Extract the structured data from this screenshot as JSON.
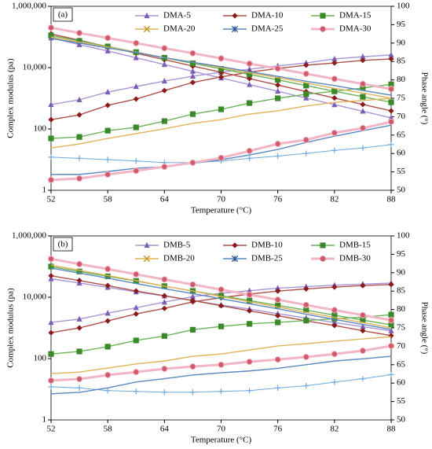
{
  "chart_data": [
    {
      "type": "line",
      "panel_label": "(a)",
      "xlabel": "Temperature (°C)",
      "ylabel": "Complex modulus (pa)",
      "y2label": "Phase angle (°)",
      "x": [
        52,
        55,
        58,
        61,
        64,
        67,
        70,
        73,
        76,
        79,
        82,
        85,
        88
      ],
      "xlim": [
        52,
        88
      ],
      "xticks": [
        52,
        58,
        64,
        70,
        76,
        82,
        88
      ],
      "yscale": "log",
      "ylim": [
        1,
        1000000
      ],
      "yticks": [
        1,
        100,
        {
          "value": 10000,
          "label": "10,000"
        },
        {
          "value": 1000000,
          "label": "1,000,000"
        }
      ],
      "y2lim": [
        50,
        100
      ],
      "y2ticks": [
        50,
        55,
        60,
        65,
        70,
        75,
        80,
        85,
        90,
        95,
        100
      ],
      "series": [
        {
          "name": "DMA-5",
          "color": "#7b5fb5",
          "line_color": "#a995d6",
          "marker": "triangle",
          "values": [
            93000,
            56000,
            35000,
            21000,
            12600,
            7600,
            4600,
            2800,
            1700,
            1020,
            620,
            380,
            230
          ],
          "phase_values": [
            73.3,
            74.6,
            76.7,
            78.2,
            79.7,
            81.0,
            82.1,
            82.9,
            83.8,
            84.6,
            85.7,
            86.3,
            86.8
          ]
        },
        {
          "name": "DMA-10",
          "color": "#8b1a1a",
          "line_color": "#b0504a",
          "marker": "diamond",
          "values": [
            126000,
            78000,
            48000,
            29500,
            18200,
            11200,
            7100,
            4400,
            2700,
            1660,
            1020,
            630,
            390
          ],
          "phase_values": [
            69.2,
            70.5,
            73.1,
            74.8,
            77.1,
            79.3,
            80.8,
            82.1,
            83.1,
            84.0,
            84.6,
            85.3,
            85.7
          ]
        },
        {
          "name": "DMA-15",
          "color": "#3a8a2a",
          "line_color": "#6db35a",
          "marker": "square",
          "values": [
            112000,
            74000,
            49000,
            32000,
            21000,
            13800,
            9100,
            6000,
            4000,
            2600,
            1700,
            1120,
            740
          ],
          "phase_values": [
            64.1,
            64.5,
            66.2,
            67.1,
            68.8,
            70.7,
            72.0,
            73.7,
            75.0,
            76.1,
            76.9,
            77.8,
            78.8
          ]
        },
        {
          "name": "DMA-20",
          "color": "#c8901a",
          "line_color": "#e0b45a",
          "marker": "x",
          "values": [
            100000,
            68000,
            47000,
            32000,
            21000,
            15000,
            10000,
            6800,
            4700,
            3200,
            2100,
            1500,
            1000
          ],
          "phase_values": [
            61.5,
            62.6,
            64.1,
            65.4,
            66.7,
            68.2,
            69.2,
            70.7,
            71.6,
            72.9,
            73.9,
            74.4,
            75.0
          ]
        },
        {
          "name": "DMA-25",
          "color": "#2a5a9a",
          "line_color": "#5a88c0",
          "marker": "star",
          "values": [
            89000,
            63000,
            44000,
            31000,
            21000,
            15000,
            10700,
            7400,
            5200,
            3600,
            2600,
            1800,
            1260
          ],
          "phase_values": [
            54.3,
            54.3,
            55.1,
            56.0,
            56.4,
            57.3,
            58.3,
            59.6,
            61.1,
            63.0,
            64.7,
            66.2,
            67.7
          ]
        },
        {
          "name": "DMA-30",
          "color": "#d05a6a",
          "line_color": "#f2b5c5",
          "marker": "circle",
          "values": [
            200000,
            135000,
            93000,
            63000,
            43000,
            29500,
            20000,
            13500,
            9300,
            6300,
            4300,
            2950,
            2000
          ],
          "phase_values": [
            52.8,
            53.2,
            54.3,
            55.3,
            56.4,
            57.5,
            58.8,
            60.7,
            62.6,
            63.7,
            65.6,
            66.9,
            68.6
          ]
        }
      ],
      "unlabeled_lines": [
        {
          "color": "#6fa8dc",
          "marker": "plus",
          "values": [
            12,
            11,
            10,
            9,
            8,
            8,
            9,
            11,
            13,
            16,
            20,
            24,
            31
          ]
        }
      ]
    },
    {
      "type": "line",
      "panel_label": "(b)",
      "xlabel": "Temperature (°C)",
      "ylabel": "Complex modulus (pa)",
      "y2label": "Phase angle (°)",
      "x": [
        52,
        55,
        58,
        61,
        64,
        67,
        70,
        73,
        76,
        79,
        82,
        85,
        88
      ],
      "xlim": [
        52,
        88
      ],
      "xticks": [
        52,
        58,
        64,
        70,
        76,
        82,
        88
      ],
      "yscale": "log",
      "ylim": [
        1,
        1000000
      ],
      "yticks": [
        1,
        100,
        {
          "value": 10000,
          "label": "10,000"
        },
        {
          "value": 1000000,
          "label": "1,000,000"
        }
      ],
      "y2lim": [
        50,
        100
      ],
      "y2ticks": [
        50,
        55,
        60,
        65,
        70,
        75,
        80,
        85,
        90,
        95,
        100
      ],
      "series": [
        {
          "name": "DMB-5",
          "color": "#7b5fb5",
          "line_color": "#a995d6",
          "marker": "triangle",
          "values": [
            40000,
            29000,
            21000,
            15000,
            11000,
            7800,
            5600,
            4100,
            2900,
            2100,
            1500,
            1100,
            800
          ],
          "phase_values": [
            76.5,
            77.4,
            79.0,
            80.5,
            82.0,
            83.5,
            84.4,
            85.1,
            85.8,
            86.2,
            86.6,
            86.9,
            87.2
          ]
        },
        {
          "name": "DMB-10",
          "color": "#8b1a1a",
          "line_color": "#b0504a",
          "marker": "diamond",
          "values": [
            50000,
            35000,
            24000,
            16000,
            11200,
            7800,
            5300,
            3600,
            2500,
            1700,
            1200,
            810,
            560
          ],
          "phase_values": [
            73.7,
            75.0,
            76.9,
            78.8,
            80.3,
            82.1,
            83.2,
            84.2,
            85.0,
            85.6,
            86.1,
            86.5,
            86.8
          ]
        },
        {
          "name": "DMB-15",
          "color": "#3a8a2a",
          "line_color": "#6db35a",
          "marker": "square",
          "values": [
            100000,
            69000,
            48000,
            34000,
            23000,
            16000,
            11200,
            7800,
            5400,
            3800,
            2600,
            1800,
            1260
          ],
          "phase_values": [
            67.9,
            68.6,
            69.9,
            71.6,
            72.8,
            74.5,
            75.4,
            76.1,
            76.5,
            77.0,
            77.5,
            77.9,
            78.6
          ]
        },
        {
          "name": "DMB-20",
          "color": "#c8901a",
          "line_color": "#e0b45a",
          "marker": "x",
          "values": [
            112000,
            76000,
            51000,
            35000,
            23000,
            16000,
            10500,
            7100,
            4800,
            3200,
            2200,
            1500,
            1000
          ],
          "phase_values": [
            62.6,
            63.0,
            64.1,
            65.2,
            66.0,
            67.3,
            67.9,
            69.0,
            70.1,
            70.7,
            71.4,
            72.0,
            72.6
          ]
        },
        {
          "name": "DMB-25",
          "color": "#2a5a9a",
          "line_color": "#5a88c0",
          "marker": "star",
          "values": [
            89000,
            61000,
            42000,
            28000,
            19000,
            13200,
            8900,
            6100,
            4200,
            2800,
            1900,
            1300,
            890
          ],
          "phase_values": [
            57.1,
            57.5,
            58.7,
            60.3,
            61.2,
            62.2,
            62.8,
            63.3,
            64.0,
            65.0,
            66.0,
            66.6,
            67.3
          ]
        },
        {
          "name": "DMB-30",
          "color": "#d05a6a",
          "line_color": "#f2b5c5",
          "marker": "circle",
          "values": [
            178000,
            120000,
            83000,
            56000,
            38000,
            26000,
            17800,
            12000,
            8300,
            5600,
            3800,
            2600,
            1780
          ],
          "phase_values": [
            60.7,
            61.1,
            62.2,
            63.0,
            63.9,
            64.5,
            65.0,
            65.8,
            66.4,
            67.1,
            67.9,
            68.8,
            70.1
          ]
        }
      ],
      "unlabeled_lines": [
        {
          "color": "#6fa8dc",
          "marker": "plus",
          "values": [
            12,
            11,
            9,
            8.5,
            8,
            8,
            8.5,
            9,
            11,
            13,
            17,
            22,
            30
          ]
        }
      ]
    }
  ]
}
